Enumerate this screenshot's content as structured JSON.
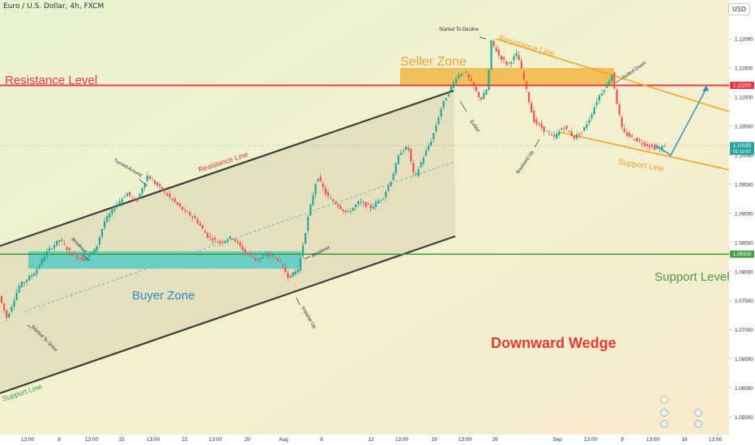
{
  "header": {
    "symbol": "Euro / U.S. Dollar, 4h, FXCM",
    "currency": "USD"
  },
  "price_tags": {
    "current": "1.10165",
    "countdown": "01:10:57",
    "resistance": "1.11200",
    "support": "1.08300"
  },
  "annotations": {
    "resistance_level": "Resistance Level",
    "support_level": "Support Level",
    "seller_zone": "Seller Zone",
    "buyer_zone": "Buyer Zone",
    "downward_wedge": "Downward Wedge",
    "channel_resistance": "Resistance Line",
    "channel_support": "Support Line",
    "wedge_resistance": "Resistance Line",
    "wedge_support": "Support Line",
    "started_to_grow": "Started To Grow",
    "breakout_1": "Breakout",
    "turned_around": "Turned Around",
    "breakout_2": "Breakout",
    "impulse_up": "Impulse Up",
    "exited": "Exited",
    "started_to_decline": "Started To Decline",
    "bounced_up": "Bounced Up",
    "rolled_down": "Rolled Down"
  },
  "colors": {
    "up": "#26a69a",
    "down": "#ef5350",
    "resistance_line": "#f23645",
    "support_line": "#43a047",
    "seller_zone": "#f0b030",
    "buyer_zone": "#4dc9c4",
    "wedge": "#f5a623",
    "channel": "#3d3d3d",
    "forecast": "#2a8fbd"
  },
  "chart_data": {
    "type": "candlestick",
    "symbol": "EURUSD",
    "timeframe": "4h",
    "ylim": [
      1.053,
      1.1225
    ],
    "y_ticks": [
      "1.12000",
      "1.11500",
      "1.11000",
      "1.10500",
      "1.10000",
      "1.09500",
      "1.09000",
      "1.08500",
      "1.08000",
      "1.07500",
      "1.07000",
      "1.06500",
      "1.06000",
      "1.05500"
    ],
    "x_ticks": [
      "13:00",
      "8",
      "13:00",
      "15",
      "13:00",
      "22",
      "13:00",
      "29",
      "Aug",
      "6",
      "12",
      "13:00",
      "19",
      "13:00",
      "26",
      "Sep",
      "13:00",
      "9",
      "13:00",
      "16",
      "13:00"
    ],
    "levels": {
      "resistance": 1.112,
      "support": 1.083
    },
    "path": [
      [
        0,
        1.076
      ],
      [
        10,
        1.072
      ],
      [
        25,
        1.0775
      ],
      [
        45,
        1.08
      ],
      [
        60,
        1.0835
      ],
      [
        75,
        1.0855
      ],
      [
        90,
        1.083
      ],
      [
        105,
        1.082
      ],
      [
        120,
        1.084
      ],
      [
        130,
        1.0885
      ],
      [
        145,
        1.0915
      ],
      [
        158,
        1.0935
      ],
      [
        170,
        1.092
      ],
      [
        183,
        1.0965
      ],
      [
        198,
        1.0945
      ],
      [
        213,
        1.0925
      ],
      [
        228,
        1.0905
      ],
      [
        243,
        1.089
      ],
      [
        258,
        1.086
      ],
      [
        273,
        1.085
      ],
      [
        288,
        1.086
      ],
      [
        303,
        1.0835
      ],
      [
        318,
        1.082
      ],
      [
        333,
        1.083
      ],
      [
        345,
        1.082
      ],
      [
        358,
        1.079
      ],
      [
        370,
        1.0805
      ],
      [
        382,
        1.0895
      ],
      [
        393,
        1.0965
      ],
      [
        405,
        1.093
      ],
      [
        418,
        1.0915
      ],
      [
        430,
        1.09
      ],
      [
        445,
        1.092
      ],
      [
        460,
        1.091
      ],
      [
        475,
        1.093
      ],
      [
        485,
        1.096
      ],
      [
        495,
        1.1005
      ],
      [
        505,
        1.1015
      ],
      [
        513,
        1.096
      ],
      [
        522,
        1.099
      ],
      [
        535,
        1.103
      ],
      [
        547,
        1.1085
      ],
      [
        556,
        1.111
      ],
      [
        565,
        1.1135
      ],
      [
        575,
        1.1145
      ],
      [
        585,
        1.112
      ],
      [
        595,
        1.1095
      ],
      [
        603,
        1.1115
      ],
      [
        608,
        1.1195
      ],
      [
        618,
        1.117
      ],
      [
        628,
        1.1155
      ],
      [
        640,
        1.1175
      ],
      [
        650,
        1.112
      ],
      [
        660,
        1.106
      ],
      [
        672,
        1.1045
      ],
      [
        685,
        1.103
      ],
      [
        697,
        1.105
      ],
      [
        710,
        1.103
      ],
      [
        720,
        1.104
      ],
      [
        730,
        1.1065
      ],
      [
        740,
        1.11
      ],
      [
        750,
        1.112
      ],
      [
        757,
        1.114
      ],
      [
        763,
        1.109
      ],
      [
        770,
        1.104
      ],
      [
        782,
        1.103
      ],
      [
        795,
        1.102
      ],
      [
        805,
        1.1015
      ],
      [
        815,
        1.101
      ],
      [
        822,
        1.1017
      ]
    ],
    "forecast": [
      [
        828,
        1.1
      ],
      [
        872,
        1.1115
      ]
    ]
  }
}
